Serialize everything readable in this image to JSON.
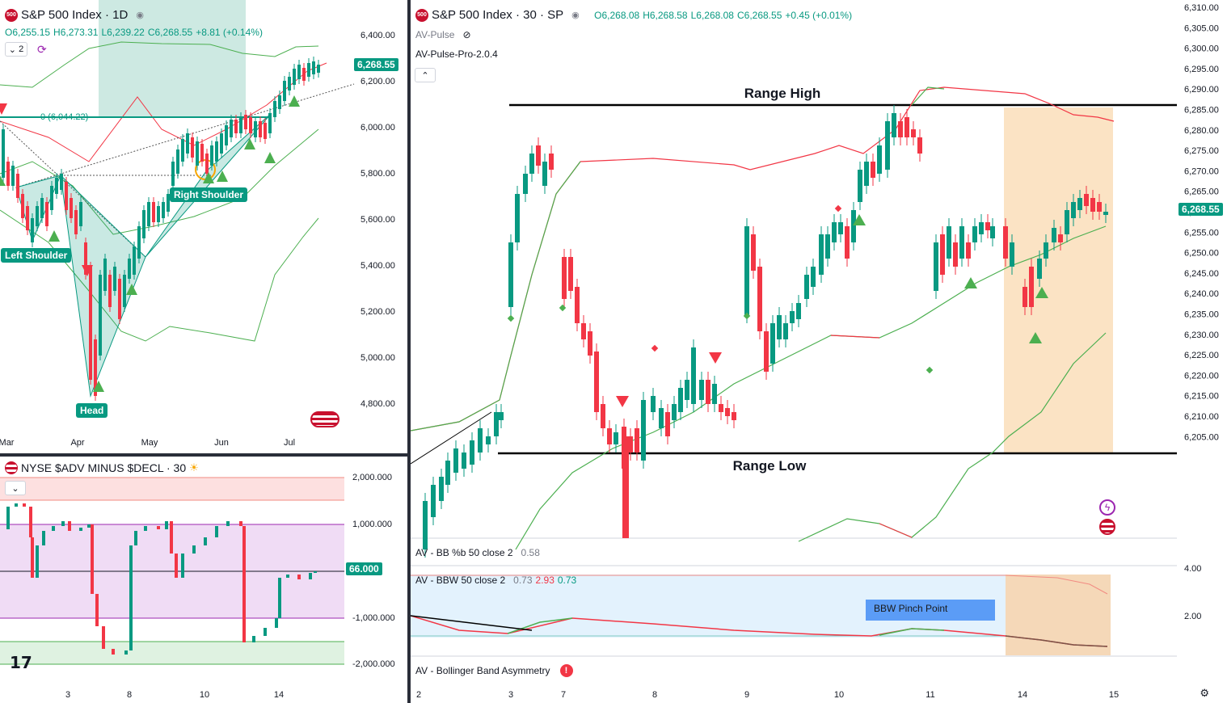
{
  "daily": {
    "symbol_logo": "500",
    "title": "S&P 500 Index · 1D",
    "open": "O6,255.15",
    "high": "H6,273.31",
    "low": "L6,239.22",
    "close": "C6,268.55",
    "change": "+8.81 (+0.14%)",
    "indicator_count": "2",
    "last_price": "6,268.55",
    "fib_label": "0 (6,044.22)",
    "callouts": {
      "left_shoulder": "Left Shoulder",
      "head": "Head",
      "right_shoulder": "Right Shoulder"
    },
    "price_axis": [
      "6,400.00",
      "6,200.00",
      "6,000.00",
      "5,800.00",
      "5,600.00",
      "5,400.00",
      "5,200.00",
      "5,000.00",
      "4,800.00"
    ],
    "time_axis": [
      "Mar",
      "Apr",
      "May",
      "Jun",
      "Jul"
    ]
  },
  "breadth": {
    "title": "NYSE $ADV MINUS $DECL · 30",
    "last_value": "66.000",
    "price_axis": [
      "2,000.000",
      "1,000.000",
      "-1,000.000",
      "-2,000.000"
    ],
    "time_axis": [
      "3",
      "8",
      "10",
      "14"
    ]
  },
  "main": {
    "symbol_logo": "500",
    "title": "S&P 500 Index · 30 · SP",
    "open": "O6,268.08",
    "high": "H6,268.58",
    "low": "L6,268.08",
    "close": "C6,268.55",
    "change": "+0.45 (+0.01%)",
    "ind1": "AV-Pulse",
    "ind2": "AV-Pulse-Pro-2.0.4",
    "range_high": "Range High",
    "range_low": "Range Low",
    "last_price": "6,268.55",
    "price_axis": [
      "6,310.00",
      "6,305.00",
      "6,300.00",
      "6,295.00",
      "6,290.00",
      "6,285.00",
      "6,280.00",
      "6,275.00",
      "6,270.00",
      "6,265.00",
      "6,260.00",
      "6,255.00",
      "6,250.00",
      "6,245.00",
      "6,240.00",
      "6,235.00",
      "6,230.00",
      "6,225.00",
      "6,220.00",
      "6,215.00",
      "6,210.00",
      "6,205.00"
    ],
    "bb_pct_label": "AV - BB %b 50 close 2",
    "bb_pct_value": "0.58",
    "bbw_label": "AV - BBW 50 close 2",
    "bbw_values": [
      "0.73",
      "2.93",
      "0.73"
    ],
    "bbw_axis": [
      "4.00",
      "2.00"
    ],
    "pinch_label": "BBW Pinch Point",
    "asym_label": "AV - Bollinger Band Asymmetry",
    "time_axis": [
      "2",
      "3",
      "7",
      "8",
      "9",
      "10",
      "11",
      "14",
      "15"
    ]
  },
  "colors": {
    "up": "#089981",
    "down": "#f23645",
    "band": "#4caf50",
    "band_upper": "#f23645",
    "highlight": "#fbe3c4"
  }
}
